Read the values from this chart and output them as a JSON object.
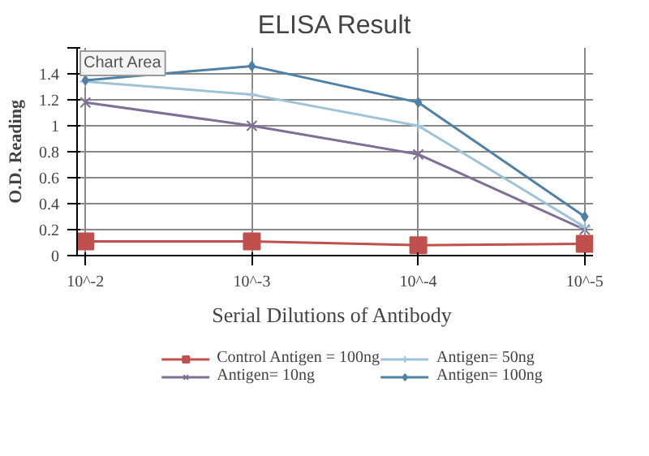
{
  "chart_data": {
    "type": "line",
    "title": "ELISA Result",
    "xlabel": "Serial Dilutions  of Antibody",
    "ylabel": "O.D. Reading",
    "categories": [
      "10^-2",
      "10^-3",
      "10^-4",
      "10^-5"
    ],
    "series": [
      {
        "name": "Control Antigen = 100ng",
        "color": "#c0504d",
        "marker": "square",
        "values": [
          0.11,
          0.11,
          0.08,
          0.09
        ]
      },
      {
        "name": "Antigen= 10ng",
        "color": "#7f6e96",
        "marker": "cross",
        "values": [
          1.18,
          1.0,
          0.78,
          0.2
        ]
      },
      {
        "name": "Antigen= 50ng",
        "color": "#9ec3d6",
        "marker": "plus",
        "values": [
          1.34,
          1.24,
          1.0,
          0.22
        ]
      },
      {
        "name": "Antigen= 100ng",
        "color": "#4f81a6",
        "marker": "diamond",
        "values": [
          1.35,
          1.46,
          1.18,
          0.3
        ]
      }
    ],
    "ylim": [
      0,
      1.6
    ],
    "yticks": [
      0,
      0.2,
      0.4,
      0.6,
      0.8,
      1,
      1.2,
      1.4,
      {
        "value": 1.6,
        "label": null
      }
    ],
    "grid": true,
    "legend": "bottom",
    "line_style": "solid",
    "annotations": [
      "Chart Area"
    ]
  }
}
